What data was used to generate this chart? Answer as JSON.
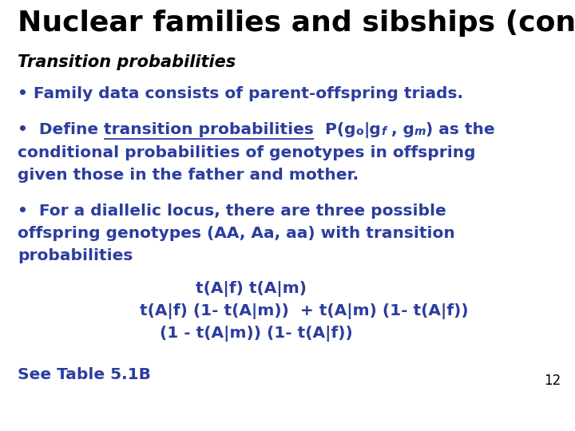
{
  "title": "Nuclear families and sibships (cont’d)",
  "title_color": "#000000",
  "subtitle": "Transition probabilities",
  "subtitle_color": "#000000",
  "blue_color": "#2B3D9E",
  "background_color": "#FFFFFF",
  "page_number": "12",
  "bullet1": "• Family data consists of parent-offspring triads.",
  "bullet2_part1": "•  Define ",
  "bullet2_underline": "transition probabilities",
  "bullet2_p2": "  P(g",
  "bullet2_sub_o": "o",
  "bullet2_p3": "|g",
  "bullet2_sub_f": "f",
  "bullet2_p4": " , g",
  "bullet2_sub_m": "m",
  "bullet2_p5": ") as the",
  "bullet2_line2": "conditional probabilities of genotypes in offspring",
  "bullet2_line3": "given those in the father and mother.",
  "bullet3_line1": "•  For a diallelic locus, there are three possible",
  "bullet3_line2": "offspring genotypes (AA, Aa, aa) with transition",
  "bullet3_line3": "probabilities",
  "formula1": "t(A|f) t(A|m)",
  "formula2": "t(A|f) (1- t(A|m))  + t(A|m) (1- t(A|f))",
  "formula3": "(1 - t(A|m)) (1- t(A|f))",
  "see_table": "See Table 5.1B"
}
